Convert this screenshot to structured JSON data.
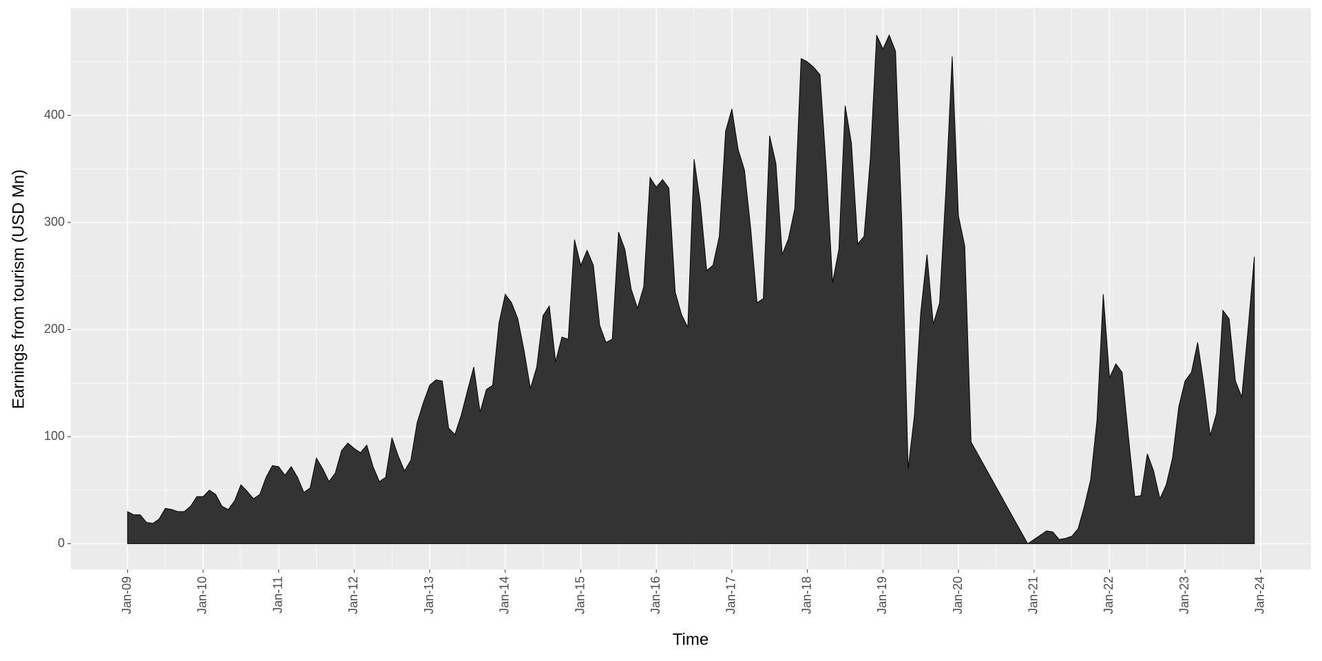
{
  "chart_data": {
    "type": "area",
    "x_label": "Time",
    "y_label": "Earnings from tourism (USD Mn)",
    "x": [
      "2009-01",
      "2009-02",
      "2009-03",
      "2009-04",
      "2009-05",
      "2009-06",
      "2009-07",
      "2009-08",
      "2009-09",
      "2009-10",
      "2009-11",
      "2009-12",
      "2010-01",
      "2010-02",
      "2010-03",
      "2010-04",
      "2010-05",
      "2010-06",
      "2010-07",
      "2010-08",
      "2010-09",
      "2010-10",
      "2010-11",
      "2010-12",
      "2011-01",
      "2011-02",
      "2011-03",
      "2011-04",
      "2011-05",
      "2011-06",
      "2011-07",
      "2011-08",
      "2011-09",
      "2011-10",
      "2011-11",
      "2011-12",
      "2012-01",
      "2012-02",
      "2012-03",
      "2012-04",
      "2012-05",
      "2012-06",
      "2012-07",
      "2012-08",
      "2012-09",
      "2012-10",
      "2012-11",
      "2012-12",
      "2013-01",
      "2013-02",
      "2013-03",
      "2013-04",
      "2013-05",
      "2013-06",
      "2013-07",
      "2013-08",
      "2013-09",
      "2013-10",
      "2013-11",
      "2013-12",
      "2014-01",
      "2014-02",
      "2014-03",
      "2014-04",
      "2014-05",
      "2014-06",
      "2014-07",
      "2014-08",
      "2014-09",
      "2014-10",
      "2014-11",
      "2014-12",
      "2015-01",
      "2015-02",
      "2015-03",
      "2015-04",
      "2015-05",
      "2015-06",
      "2015-07",
      "2015-08",
      "2015-09",
      "2015-10",
      "2015-11",
      "2015-12",
      "2016-01",
      "2016-02",
      "2016-03",
      "2016-04",
      "2016-05",
      "2016-06",
      "2016-07",
      "2016-08",
      "2016-09",
      "2016-10",
      "2016-11",
      "2016-12",
      "2017-01",
      "2017-02",
      "2017-03",
      "2017-04",
      "2017-05",
      "2017-06",
      "2017-07",
      "2017-08",
      "2017-09",
      "2017-10",
      "2017-11",
      "2017-12",
      "2018-01",
      "2018-02",
      "2018-03",
      "2018-04",
      "2018-05",
      "2018-06",
      "2018-07",
      "2018-08",
      "2018-09",
      "2018-10",
      "2018-11",
      "2018-12",
      "2019-01",
      "2019-02",
      "2019-03",
      "2019-04",
      "2019-05",
      "2019-06",
      "2019-07",
      "2019-08",
      "2019-09",
      "2019-10",
      "2019-11",
      "2019-12",
      "2020-01",
      "2020-02",
      "2020-03",
      "2020-12",
      "2021-01",
      "2021-02",
      "2021-03",
      "2021-04",
      "2021-05",
      "2021-06",
      "2021-07",
      "2021-08",
      "2021-09",
      "2021-10",
      "2021-11",
      "2021-12",
      "2022-01",
      "2022-02",
      "2022-03",
      "2022-04",
      "2022-05",
      "2022-06",
      "2022-07",
      "2022-08",
      "2022-09",
      "2022-10",
      "2022-11",
      "2022-12",
      "2023-01",
      "2023-02",
      "2023-03",
      "2023-04",
      "2023-05",
      "2023-06",
      "2023-07",
      "2023-08",
      "2023-09",
      "2023-10",
      "2023-11",
      "2023-12"
    ],
    "values": [
      30,
      27,
      27,
      20,
      19,
      23,
      33,
      32,
      30,
      30,
      35,
      44,
      44,
      50,
      46,
      35,
      32,
      40,
      55,
      49,
      42,
      46,
      62,
      73,
      72,
      64,
      72,
      62,
      48,
      52,
      80,
      70,
      58,
      66,
      87,
      94,
      89,
      85,
      92,
      72,
      58,
      62,
      99,
      82,
      68,
      78,
      113,
      132,
      148,
      153,
      152,
      108,
      102,
      120,
      143,
      165,
      123,
      144,
      148,
      206,
      233,
      225,
      210,
      180,
      145,
      165,
      213,
      222,
      170,
      193,
      191,
      284,
      260,
      274,
      260,
      204,
      188,
      191,
      291,
      275,
      238,
      220,
      240,
      342,
      333,
      340,
      332,
      235,
      214,
      202,
      359,
      318,
      255,
      260,
      287,
      385,
      406,
      368,
      349,
      294,
      225,
      229,
      381,
      355,
      270,
      285,
      313,
      453,
      450,
      445,
      438,
      350,
      244,
      275,
      409,
      374,
      280,
      287,
      360,
      475,
      462,
      475,
      460,
      300,
      70,
      120,
      216,
      270,
      205,
      225,
      330,
      455,
      306,
      278,
      95,
      0,
      4,
      8,
      12,
      11,
      4,
      5,
      7,
      14,
      35,
      60,
      115,
      233,
      155,
      168,
      160,
      100,
      44,
      45,
      84,
      68,
      42,
      55,
      80,
      128,
      152,
      160,
      188,
      148,
      101,
      122,
      218,
      210,
      152,
      137,
      200,
      268
    ],
    "color": "#333333",
    "xlim": [
      "2008-04",
      "2024-09"
    ],
    "xticks": [
      {
        "value": "2009-01",
        "label": "Jan-09"
      },
      {
        "value": "2010-01",
        "label": "Jan-10"
      },
      {
        "value": "2011-01",
        "label": "Jan-11"
      },
      {
        "value": "2012-01",
        "label": "Jan-12"
      },
      {
        "value": "2013-01",
        "label": "Jan-13"
      },
      {
        "value": "2014-01",
        "label": "Jan-14"
      },
      {
        "value": "2015-01",
        "label": "Jan-15"
      },
      {
        "value": "2016-01",
        "label": "Jan-16"
      },
      {
        "value": "2017-01",
        "label": "Jan-17"
      },
      {
        "value": "2018-01",
        "label": "Jan-18"
      },
      {
        "value": "2019-01",
        "label": "Jan-19"
      },
      {
        "value": "2020-01",
        "label": "Jan-20"
      },
      {
        "value": "2021-01",
        "label": "Jan-21"
      },
      {
        "value": "2022-01",
        "label": "Jan-22"
      },
      {
        "value": "2023-01",
        "label": "Jan-23"
      },
      {
        "value": "2024-01",
        "label": "Jan-24"
      }
    ],
    "ylim": [
      -24,
      500
    ],
    "yticks": [
      0,
      100,
      200,
      300,
      400
    ],
    "grid": true
  }
}
